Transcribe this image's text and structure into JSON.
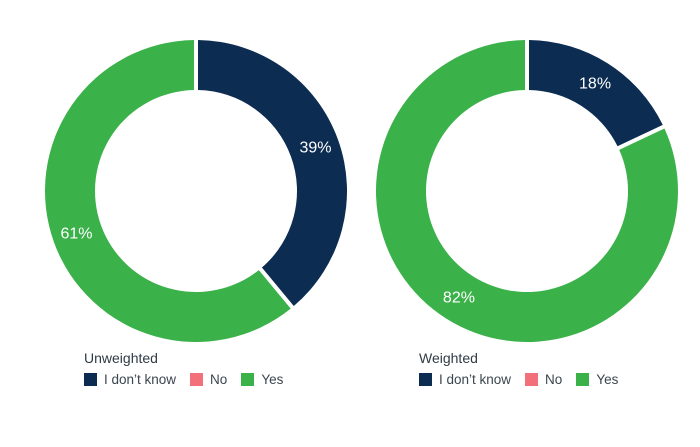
{
  "chart_data": [
    {
      "type": "pie",
      "variant": "donut",
      "title": "Unweighted",
      "categories": [
        "I don't know",
        "No",
        "Yes"
      ],
      "values": [
        39,
        0,
        61
      ],
      "labels": [
        "39%",
        "",
        "61%"
      ],
      "colors": [
        "#0c2c52",
        "#f2707a",
        "#3bb149"
      ]
    },
    {
      "type": "pie",
      "variant": "donut",
      "title": "Weighted",
      "categories": [
        "I don't know",
        "No",
        "Yes"
      ],
      "values": [
        18,
        0,
        82
      ],
      "labels": [
        "18%",
        "",
        "82%"
      ],
      "colors": [
        "#0c2c52",
        "#f2707a",
        "#3bb149"
      ]
    }
  ],
  "legend": {
    "items": [
      {
        "label": "I don’t know",
        "color": "#0c2c52"
      },
      {
        "label": "No",
        "color": "#f2707a"
      },
      {
        "label": "Yes",
        "color": "#3bb149"
      }
    ]
  }
}
